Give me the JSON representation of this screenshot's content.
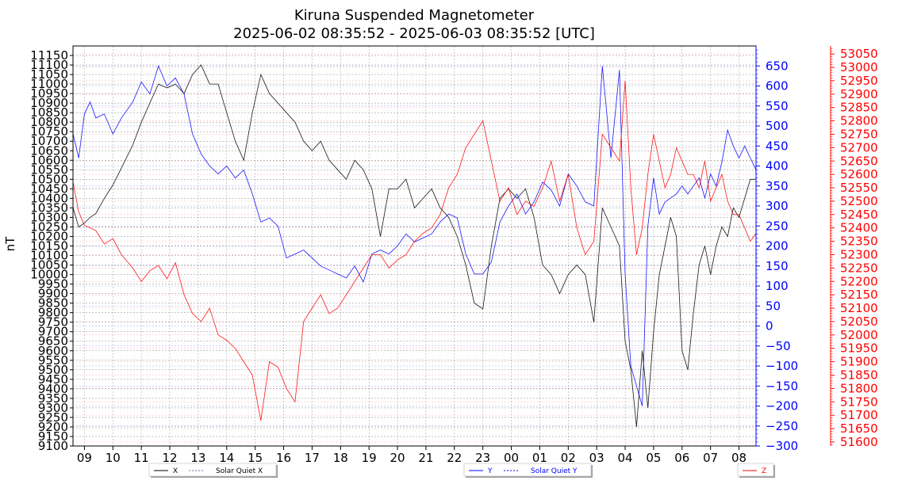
{
  "chart_data": {
    "type": "line",
    "title": "Kiruna Suspended Magnetometer",
    "subtitle": "2025-06-02 08:35:52 - 2025-06-03 08:35:52 [UTC]",
    "ylabel": "nT",
    "grid": true,
    "colors": {
      "x": "#000000",
      "y": "#0000ff",
      "z": "#ff0000"
    },
    "x_ticks": [
      "09",
      "10",
      "11",
      "12",
      "13",
      "14",
      "15",
      "16",
      "17",
      "18",
      "19",
      "20",
      "21",
      "22",
      "23",
      "00",
      "01",
      "02",
      "03",
      "04",
      "05",
      "06",
      "07",
      "08"
    ],
    "x_start_hours": 8.598,
    "x_span_hours": 24,
    "axes": {
      "left": {
        "ylim": [
          9100,
          11200
        ],
        "ticks": [
          "9100",
          "9150",
          "9200",
          "9250",
          "9300",
          "9350",
          "9400",
          "9450",
          "9500",
          "9550",
          "9600",
          "9650",
          "9700",
          "9750",
          "9800",
          "9850",
          "9900",
          "9950",
          "10000",
          "10050",
          "10100",
          "10150",
          "10200",
          "10250",
          "10300",
          "10350",
          "10400",
          "10450",
          "10500",
          "10550",
          "10600",
          "10650",
          "10700",
          "10750",
          "10800",
          "10850",
          "10900",
          "10950",
          "11000",
          "11050",
          "11100",
          "11150"
        ]
      },
      "right": {
        "ylim": [
          -300,
          700
        ],
        "ticks": [
          "−300",
          "−250",
          "−200",
          "−150",
          "−100",
          "−50",
          "0",
          "50",
          "100",
          "150",
          "200",
          "250",
          "300",
          "350",
          "400",
          "450",
          "500",
          "550",
          "600",
          "650"
        ]
      },
      "far_right": {
        "ylim": [
          51585,
          53080
        ],
        "ticks": [
          "51600",
          "51650",
          "51700",
          "51750",
          "51800",
          "51850",
          "51900",
          "51950",
          "52000",
          "52050",
          "52100",
          "52150",
          "52200",
          "52250",
          "52300",
          "52350",
          "52400",
          "52450",
          "52500",
          "52550",
          "52600",
          "52650",
          "52700",
          "52750",
          "52800",
          "52850",
          "52900",
          "52950",
          "53000",
          "53050"
        ]
      }
    },
    "legend": [
      "X",
      "Solar Quiet X",
      "Y",
      "Solar Quiet Y",
      "Z"
    ],
    "legend_placement": "bottom",
    "series": [
      {
        "name": "X",
        "axis": "left",
        "x": [
          8.6,
          8.8,
          9.0,
          9.2,
          9.4,
          9.7,
          10.0,
          10.3,
          10.7,
          11.0,
          11.3,
          11.6,
          11.9,
          12.2,
          12.5,
          12.8,
          13.1,
          13.4,
          13.7,
          14.0,
          14.3,
          14.6,
          14.9,
          15.2,
          15.5,
          15.8,
          16.1,
          16.4,
          16.7,
          17.0,
          17.3,
          17.6,
          17.9,
          18.2,
          18.5,
          18.8,
          19.1,
          19.4,
          19.7,
          20.0,
          20.3,
          20.6,
          20.9,
          21.2,
          21.5,
          21.8,
          22.1,
          22.4,
          22.7,
          23.0,
          23.3,
          23.6,
          23.9,
          24.2,
          24.5,
          24.8,
          25.1,
          25.4,
          25.7,
          26.0,
          26.3,
          26.6,
          26.9,
          27.2,
          27.5,
          27.8,
          28.0,
          28.2,
          28.4,
          28.6,
          28.8,
          29.0,
          29.2,
          29.4,
          29.6,
          29.8,
          30.0,
          30.2,
          30.4,
          30.6,
          30.8,
          31.0,
          31.2,
          31.4,
          31.6,
          31.8,
          32.0,
          32.2,
          32.4,
          32.6
        ],
        "values": [
          10350,
          10250,
          10270,
          10300,
          10320,
          10400,
          10470,
          10560,
          10680,
          10800,
          10900,
          11000,
          10980,
          11000,
          10950,
          11050,
          11100,
          11000,
          11000,
          10850,
          10700,
          10600,
          10850,
          11050,
          10950,
          10900,
          10850,
          10800,
          10700,
          10650,
          10700,
          10600,
          10550,
          10500,
          10600,
          10550,
          10450,
          10200,
          10450,
          10450,
          10500,
          10350,
          10400,
          10450,
          10350,
          10300,
          10200,
          10050,
          9850,
          9820,
          10150,
          10400,
          10450,
          10400,
          10450,
          10300,
          10050,
          10000,
          9900,
          10000,
          10050,
          10000,
          9750,
          10350,
          10250,
          10150,
          9650,
          9500,
          9200,
          9600,
          9300,
          9700,
          10000,
          10150,
          10300,
          10200,
          9600,
          9500,
          9800,
          10050,
          10150,
          10000,
          10150,
          10250,
          10200,
          10350,
          10300,
          10400,
          10500,
          10500
        ]
      },
      {
        "name": "Y",
        "axis": "right",
        "x": [
          8.6,
          8.8,
          9.0,
          9.2,
          9.4,
          9.7,
          10.0,
          10.3,
          10.7,
          11.0,
          11.3,
          11.6,
          11.9,
          12.2,
          12.5,
          12.8,
          13.1,
          13.4,
          13.7,
          14.0,
          14.3,
          14.6,
          14.9,
          15.2,
          15.5,
          15.8,
          16.1,
          16.4,
          16.7,
          17.0,
          17.3,
          17.6,
          17.9,
          18.2,
          18.5,
          18.8,
          19.1,
          19.4,
          19.7,
          20.0,
          20.3,
          20.6,
          20.9,
          21.2,
          21.5,
          21.8,
          22.1,
          22.4,
          22.7,
          23.0,
          23.3,
          23.6,
          23.9,
          24.2,
          24.5,
          24.8,
          25.1,
          25.4,
          25.7,
          26.0,
          26.3,
          26.6,
          26.9,
          27.2,
          27.5,
          27.8,
          28.0,
          28.2,
          28.4,
          28.6,
          28.8,
          29.0,
          29.2,
          29.4,
          29.6,
          29.8,
          30.0,
          30.2,
          30.4,
          30.6,
          30.8,
          31.0,
          31.2,
          31.4,
          31.6,
          31.8,
          32.0,
          32.2,
          32.4,
          32.6
        ],
        "values": [
          480,
          420,
          530,
          560,
          520,
          530,
          480,
          520,
          560,
          610,
          580,
          650,
          600,
          620,
          580,
          480,
          430,
          400,
          380,
          400,
          370,
          390,
          330,
          260,
          270,
          250,
          170,
          180,
          190,
          170,
          150,
          140,
          130,
          120,
          150,
          110,
          180,
          190,
          180,
          200,
          230,
          210,
          220,
          230,
          260,
          280,
          270,
          180,
          130,
          130,
          160,
          260,
          300,
          330,
          280,
          310,
          360,
          340,
          300,
          380,
          350,
          310,
          300,
          650,
          420,
          640,
          130,
          -100,
          -150,
          -200,
          250,
          370,
          280,
          310,
          320,
          330,
          350,
          330,
          350,
          370,
          320,
          380,
          350,
          410,
          490,
          450,
          420,
          450,
          420,
          390
        ]
      },
      {
        "name": "Z",
        "axis": "far_right",
        "x": [
          8.6,
          8.8,
          9.0,
          9.2,
          9.4,
          9.7,
          10.0,
          10.3,
          10.7,
          11.0,
          11.3,
          11.6,
          11.9,
          12.2,
          12.5,
          12.8,
          13.1,
          13.4,
          13.7,
          14.0,
          14.3,
          14.6,
          14.9,
          15.2,
          15.5,
          15.8,
          16.1,
          16.4,
          16.7,
          17.0,
          17.3,
          17.6,
          17.9,
          18.2,
          18.5,
          18.8,
          19.1,
          19.4,
          19.7,
          20.0,
          20.3,
          20.6,
          20.9,
          21.2,
          21.5,
          21.8,
          22.1,
          22.4,
          22.7,
          23.0,
          23.3,
          23.6,
          23.9,
          24.2,
          24.5,
          24.8,
          25.1,
          25.4,
          25.7,
          26.0,
          26.3,
          26.6,
          26.9,
          27.2,
          27.5,
          27.8,
          28.0,
          28.2,
          28.4,
          28.6,
          28.8,
          29.0,
          29.2,
          29.4,
          29.6,
          29.8,
          30.0,
          30.2,
          30.4,
          30.6,
          30.8,
          31.0,
          31.2,
          31.4,
          31.6,
          31.8,
          32.0,
          32.2,
          32.4,
          32.6
        ],
        "values": [
          52570,
          52460,
          52410,
          52400,
          52390,
          52340,
          52360,
          52300,
          52250,
          52200,
          52240,
          52260,
          52210,
          52270,
          52150,
          52080,
          52050,
          52100,
          52000,
          51980,
          51950,
          51900,
          51850,
          51680,
          51900,
          51880,
          51800,
          51750,
          52050,
          52100,
          52150,
          52080,
          52100,
          52150,
          52200,
          52250,
          52300,
          52300,
          52250,
          52280,
          52300,
          52350,
          52380,
          52400,
          52450,
          52550,
          52600,
          52700,
          52750,
          52800,
          52650,
          52500,
          52550,
          52450,
          52500,
          52480,
          52550,
          52650,
          52500,
          52600,
          52400,
          52300,
          52350,
          52750,
          52700,
          52650,
          52950,
          52550,
          52300,
          52400,
          52600,
          52750,
          52650,
          52550,
          52600,
          52700,
          52650,
          52600,
          52600,
          52550,
          52650,
          52500,
          52550,
          52600,
          52500,
          52450,
          52450,
          52400,
          52350,
          52380
        ]
      }
    ]
  }
}
